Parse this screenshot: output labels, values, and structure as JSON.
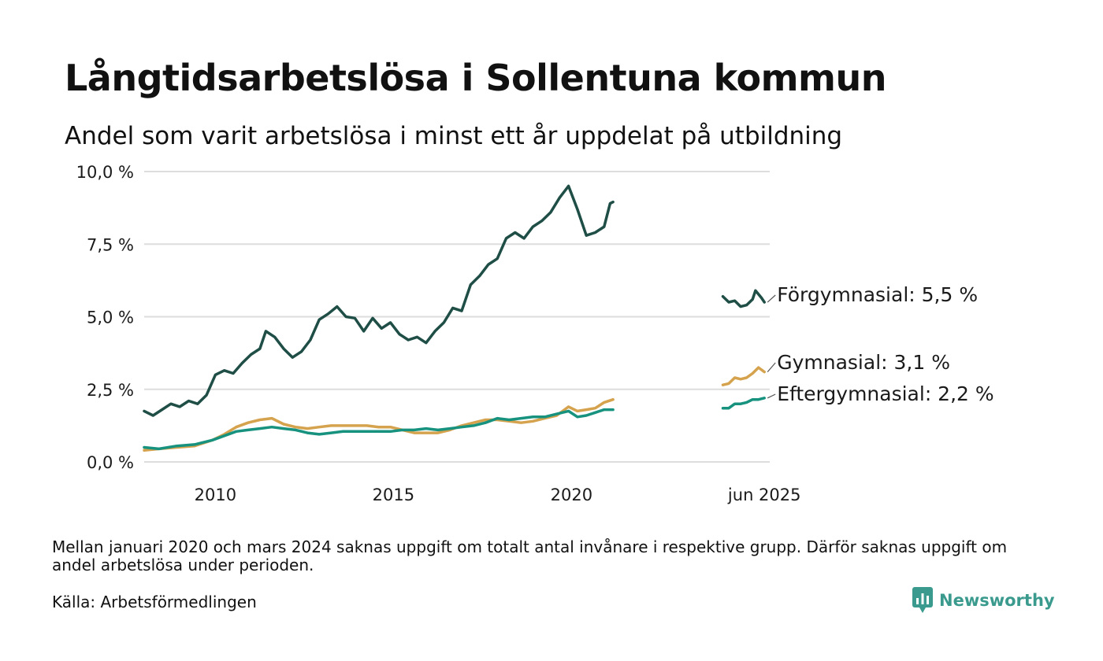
{
  "header": {
    "title": "Långtidsarbetslösa i Sollentuna kommun",
    "subtitle": "Andel som varit arbetslösa i minst ett år uppdelat på utbildning"
  },
  "footer": {
    "note": "Mellan januari 2020 och mars 2024 saknas uppgift om totalt antal invånare i respektive grupp. Därför saknas uppgift om andel arbetslösa under perioden.",
    "source": "Källa: Arbetsförmedlingen",
    "brand": "Newsworthy"
  },
  "colors": {
    "forgymnasial": "#1f4e47",
    "gymnasial": "#d5a24d",
    "eftergymnasial": "#17927f",
    "gridline": "#dddddd",
    "brand": "#3a9a8e"
  },
  "chart_data": {
    "type": "line",
    "title": "Långtidsarbetslösa i Sollentuna kommun",
    "subtitle": "Andel som varit arbetslösa i minst ett år uppdelat på utbildning",
    "xlabel": "",
    "ylabel": "",
    "ylim": [
      0,
      10
    ],
    "y_ticks": [
      {
        "value": 0,
        "label": "0,0 %"
      },
      {
        "value": 2.5,
        "label": "2,5 %"
      },
      {
        "value": 5,
        "label": "5,0 %"
      },
      {
        "value": 7.5,
        "label": "7,5 %"
      },
      {
        "value": 10,
        "label": "10,0 %"
      }
    ],
    "x_ticks": [
      {
        "x": "2010-01",
        "label": "2010"
      },
      {
        "x": "2015-01",
        "label": "2015"
      },
      {
        "x": "2020-01",
        "label": "2020"
      },
      {
        "x": "2025-06",
        "label": "jun 2025"
      }
    ],
    "grid": true,
    "legend": "direct labels at right",
    "series": [
      {
        "name": "Förgymnasial",
        "label": "Förgymnasial: 5,5 %",
        "color": "#1f4e47",
        "segments": [
          [
            [
              "2008-01",
              1.75
            ],
            [
              "2008-04",
              1.6
            ],
            [
              "2008-07",
              1.8
            ],
            [
              "2008-10",
              2.0
            ],
            [
              "2009-01",
              1.9
            ],
            [
              "2009-04",
              2.1
            ],
            [
              "2009-07",
              2.0
            ],
            [
              "2009-10",
              2.3
            ],
            [
              "2010-01",
              3.0
            ],
            [
              "2010-04",
              3.15
            ],
            [
              "2010-07",
              3.05
            ],
            [
              "2010-10",
              3.4
            ],
            [
              "2011-01",
              3.7
            ],
            [
              "2011-04",
              3.9
            ],
            [
              "2011-06",
              4.5
            ],
            [
              "2011-09",
              4.3
            ],
            [
              "2011-12",
              3.9
            ],
            [
              "2012-03",
              3.6
            ],
            [
              "2012-06",
              3.8
            ],
            [
              "2012-09",
              4.2
            ],
            [
              "2012-12",
              4.9
            ],
            [
              "2013-03",
              5.1
            ],
            [
              "2013-06",
              5.35
            ],
            [
              "2013-09",
              5.0
            ],
            [
              "2013-12",
              4.95
            ],
            [
              "2014-03",
              4.5
            ],
            [
              "2014-06",
              4.95
            ],
            [
              "2014-09",
              4.6
            ],
            [
              "2014-12",
              4.8
            ],
            [
              "2015-03",
              4.4
            ],
            [
              "2015-06",
              4.2
            ],
            [
              "2015-09",
              4.3
            ],
            [
              "2015-12",
              4.1
            ],
            [
              "2016-03",
              4.5
            ],
            [
              "2016-06",
              4.8
            ],
            [
              "2016-09",
              5.3
            ],
            [
              "2016-12",
              5.2
            ],
            [
              "2017-03",
              6.1
            ],
            [
              "2017-06",
              6.4
            ],
            [
              "2017-09",
              6.8
            ],
            [
              "2017-12",
              7.0
            ],
            [
              "2018-03",
              7.7
            ],
            [
              "2018-06",
              7.9
            ],
            [
              "2018-09",
              7.7
            ],
            [
              "2018-12",
              8.1
            ],
            [
              "2019-03",
              8.3
            ],
            [
              "2019-06",
              8.6
            ],
            [
              "2019-09",
              9.1
            ],
            [
              "2019-12",
              9.5
            ],
            [
              "2020-03",
              8.7
            ],
            [
              "2020-06",
              7.8
            ],
            [
              "2020-09",
              7.9
            ],
            [
              "2020-12",
              8.1
            ],
            [
              "2021-02",
              8.9
            ],
            [
              "2021-03",
              8.95
            ]
          ],
          [
            [
              "2024-04",
              5.7
            ],
            [
              "2024-06",
              5.5
            ],
            [
              "2024-08",
              5.55
            ],
            [
              "2024-10",
              5.35
            ],
            [
              "2024-12",
              5.4
            ],
            [
              "2025-02",
              5.6
            ],
            [
              "2025-03",
              5.9
            ],
            [
              "2025-05",
              5.65
            ],
            [
              "2025-06",
              5.5
            ]
          ]
        ]
      },
      {
        "name": "Gymnasial",
        "label": "Gymnasial: 3,1 %",
        "color": "#d5a24d",
        "segments": [
          [
            [
              "2008-01",
              0.4
            ],
            [
              "2008-06",
              0.45
            ],
            [
              "2008-12",
              0.5
            ],
            [
              "2009-06",
              0.55
            ],
            [
              "2009-12",
              0.75
            ],
            [
              "2010-04",
              0.95
            ],
            [
              "2010-08",
              1.2
            ],
            [
              "2010-12",
              1.35
            ],
            [
              "2011-04",
              1.45
            ],
            [
              "2011-08",
              1.5
            ],
            [
              "2011-12",
              1.3
            ],
            [
              "2012-04",
              1.2
            ],
            [
              "2012-08",
              1.15
            ],
            [
              "2012-12",
              1.2
            ],
            [
              "2013-04",
              1.25
            ],
            [
              "2013-08",
              1.25
            ],
            [
              "2013-12",
              1.25
            ],
            [
              "2014-04",
              1.25
            ],
            [
              "2014-08",
              1.2
            ],
            [
              "2014-12",
              1.2
            ],
            [
              "2015-04",
              1.1
            ],
            [
              "2015-08",
              1.0
            ],
            [
              "2015-12",
              1.0
            ],
            [
              "2016-04",
              1.0
            ],
            [
              "2016-08",
              1.1
            ],
            [
              "2016-12",
              1.25
            ],
            [
              "2017-04",
              1.35
            ],
            [
              "2017-08",
              1.45
            ],
            [
              "2017-12",
              1.45
            ],
            [
              "2018-04",
              1.4
            ],
            [
              "2018-08",
              1.35
            ],
            [
              "2018-12",
              1.4
            ],
            [
              "2019-04",
              1.5
            ],
            [
              "2019-08",
              1.6
            ],
            [
              "2019-12",
              1.9
            ],
            [
              "2020-03",
              1.75
            ],
            [
              "2020-06",
              1.8
            ],
            [
              "2020-09",
              1.85
            ],
            [
              "2020-12",
              2.05
            ],
            [
              "2021-03",
              2.15
            ]
          ],
          [
            [
              "2024-04",
              2.65
            ],
            [
              "2024-06",
              2.7
            ],
            [
              "2024-08",
              2.9
            ],
            [
              "2024-10",
              2.85
            ],
            [
              "2024-12",
              2.9
            ],
            [
              "2025-02",
              3.05
            ],
            [
              "2025-04",
              3.25
            ],
            [
              "2025-06",
              3.1
            ]
          ]
        ]
      },
      {
        "name": "Eftergymnasial",
        "label": "Eftergymnasial: 2,2 %",
        "color": "#17927f",
        "segments": [
          [
            [
              "2008-01",
              0.5
            ],
            [
              "2008-06",
              0.45
            ],
            [
              "2008-12",
              0.55
            ],
            [
              "2009-06",
              0.6
            ],
            [
              "2009-12",
              0.75
            ],
            [
              "2010-04",
              0.9
            ],
            [
              "2010-08",
              1.05
            ],
            [
              "2010-12",
              1.1
            ],
            [
              "2011-04",
              1.15
            ],
            [
              "2011-08",
              1.2
            ],
            [
              "2011-12",
              1.15
            ],
            [
              "2012-04",
              1.1
            ],
            [
              "2012-08",
              1.0
            ],
            [
              "2012-12",
              0.95
            ],
            [
              "2013-04",
              1.0
            ],
            [
              "2013-08",
              1.05
            ],
            [
              "2013-12",
              1.05
            ],
            [
              "2014-04",
              1.05
            ],
            [
              "2014-08",
              1.05
            ],
            [
              "2014-12",
              1.05
            ],
            [
              "2015-04",
              1.1
            ],
            [
              "2015-08",
              1.1
            ],
            [
              "2015-12",
              1.15
            ],
            [
              "2016-04",
              1.1
            ],
            [
              "2016-08",
              1.15
            ],
            [
              "2016-12",
              1.2
            ],
            [
              "2017-04",
              1.25
            ],
            [
              "2017-08",
              1.35
            ],
            [
              "2017-12",
              1.5
            ],
            [
              "2018-04",
              1.45
            ],
            [
              "2018-08",
              1.5
            ],
            [
              "2018-12",
              1.55
            ],
            [
              "2019-04",
              1.55
            ],
            [
              "2019-08",
              1.65
            ],
            [
              "2019-12",
              1.75
            ],
            [
              "2020-03",
              1.55
            ],
            [
              "2020-06",
              1.6
            ],
            [
              "2020-09",
              1.7
            ],
            [
              "2020-12",
              1.8
            ],
            [
              "2021-03",
              1.8
            ]
          ],
          [
            [
              "2024-04",
              1.85
            ],
            [
              "2024-06",
              1.85
            ],
            [
              "2024-08",
              2.0
            ],
            [
              "2024-10",
              2.0
            ],
            [
              "2024-12",
              2.05
            ],
            [
              "2025-02",
              2.15
            ],
            [
              "2025-04",
              2.15
            ],
            [
              "2025-06",
              2.2
            ]
          ]
        ]
      }
    ]
  }
}
